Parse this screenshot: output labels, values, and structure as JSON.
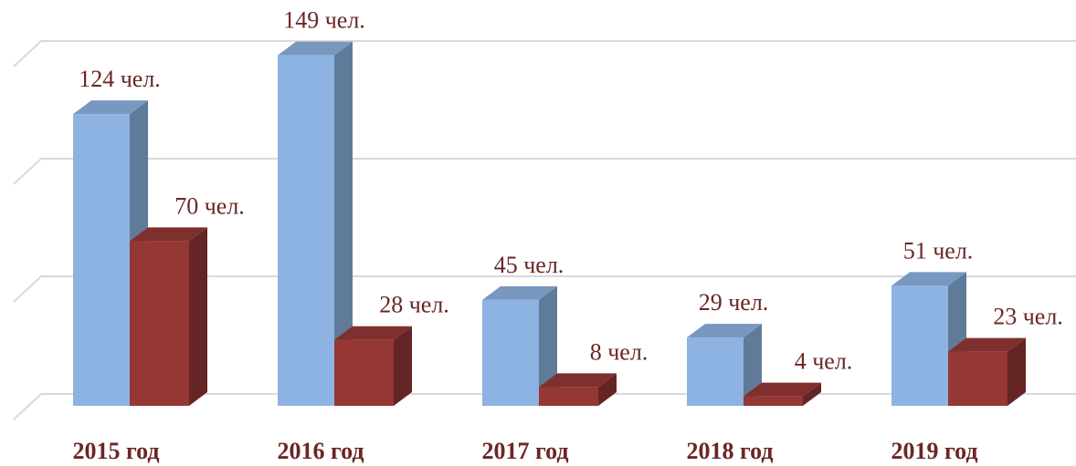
{
  "chart_data": {
    "type": "bar3d",
    "categories": [
      "2015 год",
      "2016 год",
      "2017 год",
      "2018 год",
      "2019 год"
    ],
    "series": [
      {
        "color": "#8db3e2",
        "values": [
          124,
          149,
          45,
          29,
          51
        ],
        "value_labels": [
          "124 чел.",
          "149 чел.",
          "45 чел.",
          "29 чел.",
          "51 чел."
        ]
      },
      {
        "color": "#953735",
        "values": [
          70,
          28,
          8,
          4,
          23
        ],
        "value_labels": [
          "70 чел.",
          "28 чел.",
          "8 чел.",
          "4 чел.",
          "23 чел."
        ]
      }
    ],
    "ylim": [
      0,
      150
    ],
    "yticks": [
      0,
      50,
      100,
      150
    ],
    "grid": true
  }
}
